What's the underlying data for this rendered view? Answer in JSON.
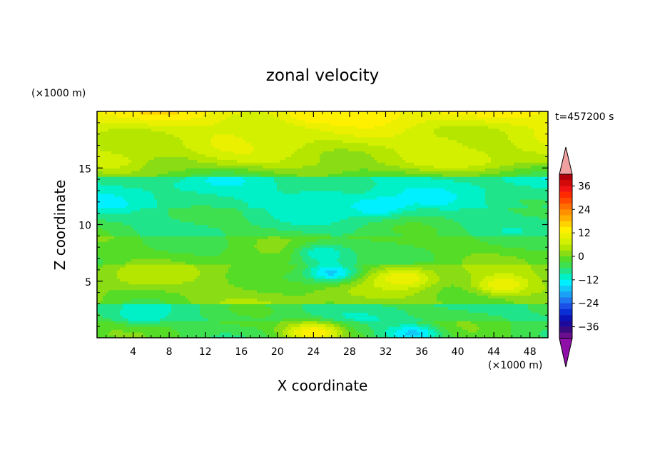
{
  "chart_data": {
    "type": "heatmap",
    "title": "zonal velocity",
    "xlabel": "X coordinate",
    "ylabel": "Z coordinate",
    "x_unit": "(×1000 m)",
    "z_unit": "(×1000 m)",
    "time_label": "t=457200 s",
    "xlim": [
      0,
      50
    ],
    "zlim": [
      0,
      20
    ],
    "x_ticks": [
      "4",
      "8",
      "12",
      "16",
      "20",
      "24",
      "28",
      "32",
      "36",
      "40",
      "44",
      "48"
    ],
    "z_ticks": [
      "5",
      "10",
      "15"
    ],
    "colorbar": {
      "levels": [
        -42,
        -39,
        -36,
        -33,
        -30,
        -27,
        -24,
        -21,
        -18,
        -15,
        -12,
        -9,
        -6,
        -3,
        0,
        3,
        6,
        9,
        12,
        15,
        18,
        21,
        24,
        27,
        30,
        33,
        36,
        39,
        42
      ],
      "tick_labels": [
        "36",
        "24",
        "12",
        "0",
        "-12",
        "-24",
        "-36"
      ],
      "colors": [
        "#6a0f8e",
        "#3a0a80",
        "#1d0a9c",
        "#0a14b8",
        "#0a2fd6",
        "#1b50e8",
        "#1e78f0",
        "#1aa0f4",
        "#12c8f6",
        "#00f0ff",
        "#00f0c8",
        "#20e48a",
        "#3fe050",
        "#54dc26",
        "#8adc14",
        "#b4e600",
        "#d2f000",
        "#eaf000",
        "#fff000",
        "#ffd200",
        "#ffb000",
        "#ff9000",
        "#ff6e00",
        "#ff4a00",
        "#ff2a00",
        "#f01414",
        "#d20a0a",
        "#b4000a"
      ],
      "over_color": "#f0a0a0",
      "under_color": "#8e10a8"
    },
    "field_centers_kms_note": "",
    "features": [
      {
        "x": 24,
        "z": 19.7,
        "u": 14
      },
      {
        "x": 20,
        "z": 17.5,
        "u": 7
      },
      {
        "x": 38,
        "z": 17,
        "u": 7
      },
      {
        "x": 8,
        "z": 15.2,
        "u": 0
      },
      {
        "x": 25,
        "z": 12.5,
        "u": -11
      },
      {
        "x": 31,
        "z": 11.6,
        "u": -15
      },
      {
        "x": 25,
        "z": 7.5,
        "u": -12
      },
      {
        "x": 26,
        "z": 5.8,
        "u": -16
      },
      {
        "x": 34,
        "z": 5.3,
        "u": 12
      },
      {
        "x": 45,
        "z": 4.7,
        "u": 12
      },
      {
        "x": 5,
        "z": 5.5,
        "u": 5
      },
      {
        "x": 24,
        "z": 0.5,
        "u": 15
      },
      {
        "x": 35,
        "z": 0.4,
        "u": -16
      },
      {
        "x": 5,
        "z": 2,
        "u": -11
      }
    ]
  }
}
